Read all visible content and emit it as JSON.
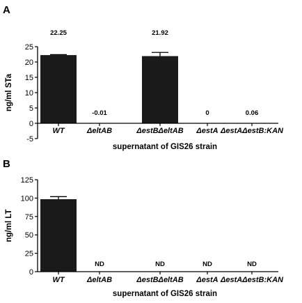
{
  "chart_data": [
    {
      "type": "bar",
      "panel": "A",
      "categories": [
        "WT",
        "ΔeltAB",
        "ΔestBΔeltAB",
        "ΔestA",
        "ΔestAΔestB:KAN"
      ],
      "values": [
        22.25,
        -0.01,
        21.92,
        0,
        0.06
      ],
      "errors": [
        0.15,
        0,
        1.2,
        0,
        0
      ],
      "data_labels": [
        "22.25",
        "-0.01",
        "21.92",
        "0",
        "0.06"
      ],
      "ylabel": "ng/ml STa",
      "xlabel": "supernatant of GIS26 strain",
      "ylim": [
        -5,
        25
      ],
      "yticks": [
        -5,
        0,
        5,
        10,
        15,
        20,
        25
      ],
      "ytick_labels": [
        "-5",
        "0",
        "5",
        "10",
        "15",
        "20",
        "25"
      ],
      "grid": false,
      "bar_color": "#1a1a1a"
    },
    {
      "type": "bar",
      "panel": "B",
      "categories": [
        "WT",
        "ΔeltAB",
        "ΔestBΔeltAB",
        "ΔestA",
        "ΔestAΔestB:KAN"
      ],
      "values": [
        98.5,
        0,
        0,
        0,
        0
      ],
      "errors": [
        3.5,
        0,
        0,
        0,
        0
      ],
      "data_labels": [
        "",
        "ND",
        "ND",
        "ND",
        "ND"
      ],
      "ylabel": "ng/ml LT",
      "xlabel": "supernatant of GIS26 strain",
      "ylim": [
        0,
        125
      ],
      "yticks": [
        0,
        25,
        50,
        75,
        100,
        125
      ],
      "ytick_labels": [
        "0",
        "25",
        "50",
        "75",
        "100",
        "125"
      ],
      "grid": false,
      "bar_color": "#1a1a1a"
    }
  ]
}
